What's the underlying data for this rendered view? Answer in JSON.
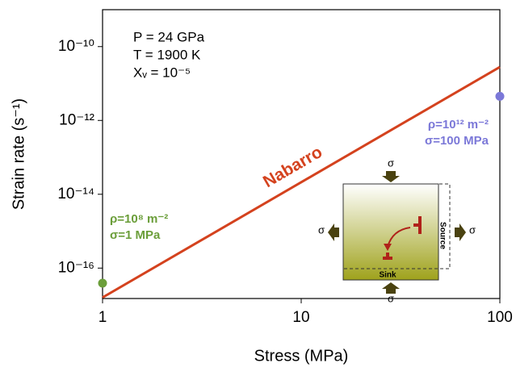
{
  "chart_data": {
    "type": "line",
    "x_label": "Stress (MPa)",
    "y_label": "Strain rate (s⁻¹)",
    "xlog": true,
    "ylog": true,
    "xlim": [
      1,
      100
    ],
    "ylim": [
      1.5e-17,
      1e-09
    ],
    "xticks": [
      1,
      10,
      100
    ],
    "yticks": [
      {
        "value": 1e-10,
        "label": "10⁻¹⁰"
      },
      {
        "value": 1e-12,
        "label": "10⁻¹²"
      },
      {
        "value": 1e-14,
        "label": "10⁻¹⁴"
      },
      {
        "value": 1e-16,
        "label": "10⁻¹⁶"
      }
    ],
    "series": [
      {
        "name": "Nabarro",
        "color": "#d4421e",
        "x": [
          1,
          100
        ],
        "values": [
          1.6e-17,
          2.8e-11
        ]
      }
    ],
    "points": [
      {
        "x": 1,
        "y": 3.9e-17,
        "color": "#6b9e3a",
        "labels": [
          "ρ=10⁸ m⁻²",
          "σ=1 MPa"
        ]
      },
      {
        "x": 100,
        "y": 4.5e-12,
        "color": "#7b78d8",
        "labels": [
          "ρ=10¹² m⁻²",
          "σ=100 MPa"
        ]
      }
    ],
    "conditions": [
      "P = 24 GPa",
      "T = 1900 K",
      "Xᵥ = 10⁻⁵"
    ],
    "inset": {
      "stress": "σ",
      "source": "Source",
      "sink": "Sink"
    }
  }
}
